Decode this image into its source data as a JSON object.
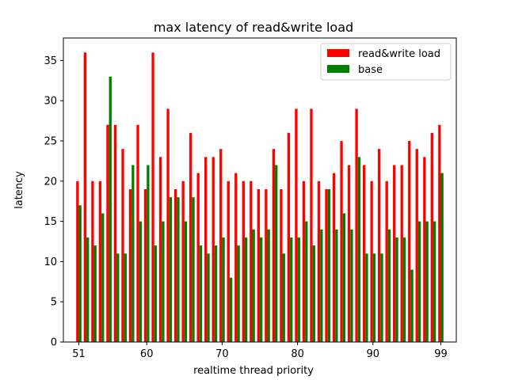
{
  "chart_data": {
    "type": "bar",
    "title": "max latency of read&write load",
    "xlabel": "realtime thread priority",
    "ylabel": "latency",
    "xlim": [
      48.95,
      101.05
    ],
    "ylim": [
      0,
      37.8
    ],
    "x_ticks": [
      51,
      60,
      70,
      80,
      90,
      99
    ],
    "y_ticks": [
      0,
      5,
      10,
      15,
      20,
      25,
      30,
      35
    ],
    "x": [
      51,
      52,
      53,
      54,
      55,
      56,
      57,
      58,
      59,
      60,
      61,
      62,
      63,
      64,
      65,
      66,
      67,
      68,
      69,
      70,
      71,
      72,
      73,
      74,
      75,
      76,
      77,
      78,
      79,
      80,
      81,
      82,
      83,
      84,
      85,
      86,
      87,
      88,
      89,
      90,
      91,
      92,
      93,
      94,
      95,
      96,
      97,
      98,
      99
    ],
    "series": [
      {
        "name": "read&write load",
        "color": "#ff0000",
        "values": [
          20,
          36,
          20,
          20,
          27,
          27,
          24,
          19,
          27,
          19,
          36,
          23,
          29,
          19,
          20,
          26,
          21,
          23,
          23,
          24,
          20,
          21,
          20,
          20,
          19,
          19,
          24,
          19,
          26,
          29,
          20,
          29,
          20,
          19,
          21,
          25,
          22,
          29,
          22,
          20,
          24,
          20,
          22,
          22,
          25,
          24,
          23,
          26,
          27
        ]
      },
      {
        "name": "base",
        "color": "#008000",
        "values": [
          17,
          13,
          12,
          16,
          33,
          11,
          11,
          22,
          15,
          22,
          12,
          15,
          18,
          18,
          15,
          18,
          12,
          11,
          12,
          13,
          8,
          12,
          13,
          14,
          13,
          14,
          22,
          11,
          13,
          13,
          15,
          12,
          14,
          19,
          14,
          16,
          14,
          23,
          11,
          11,
          11,
          14,
          13,
          13,
          9,
          15,
          15,
          15,
          21
        ]
      }
    ],
    "legend_position": "top-right",
    "grid": false
  }
}
